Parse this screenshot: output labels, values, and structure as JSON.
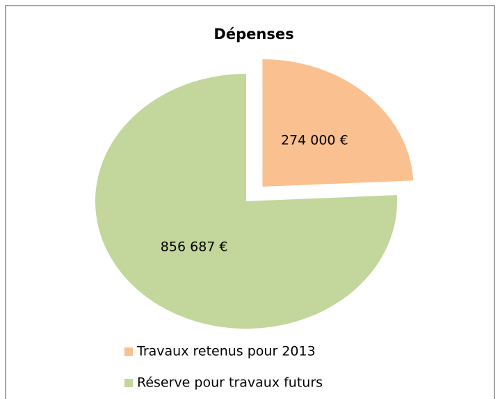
{
  "chart_data": {
    "type": "pie",
    "title": "Dépenses",
    "categories": [
      "Travaux retenus pour 2013",
      "Réserve pour travaux futurs"
    ],
    "values": [
      274000,
      856687
    ],
    "value_labels": [
      "274 000 €",
      "856 687 €"
    ],
    "colors": [
      "#fac090",
      "#c3d69b"
    ],
    "exploded": [
      true,
      false
    ]
  }
}
